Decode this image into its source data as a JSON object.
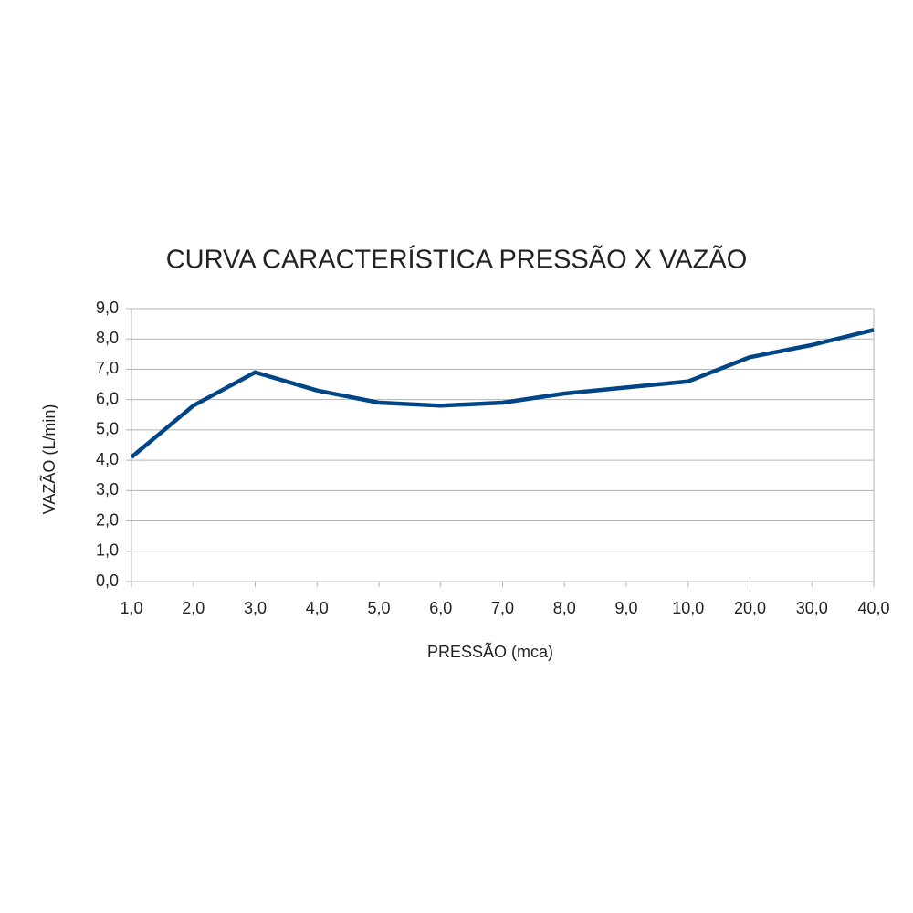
{
  "chart_data": {
    "type": "line",
    "title": "CURVA CARACTERÍSTICA PRESSÃO X VAZÃO",
    "x_label": "PRESSÃO (mca)",
    "y_label": "VAZÃO (L/min)",
    "categories": [
      "1,0",
      "2,0",
      "3,0",
      "4,0",
      "5,0",
      "6,0",
      "7,0",
      "8,0",
      "9,0",
      "10,0",
      "20,0",
      "30,0",
      "40,0"
    ],
    "series": [
      {
        "color": "#004586",
        "values": [
          4.1,
          5.8,
          6.9,
          6.3,
          5.9,
          5.8,
          5.9,
          6.2,
          6.4,
          6.6,
          7.4,
          7.8,
          8.3
        ]
      }
    ],
    "ylim": [
      0,
      9
    ],
    "yticks": [
      {
        "value": 0,
        "label": "0,0"
      },
      {
        "value": 1,
        "label": "1,0"
      },
      {
        "value": 2,
        "label": "2,0"
      },
      {
        "value": 3,
        "label": "3,0"
      },
      {
        "value": 4,
        "label": "4,0"
      },
      {
        "value": 5,
        "label": "5,0"
      },
      {
        "value": 6,
        "label": "6,0"
      },
      {
        "value": 7,
        "label": "7,0"
      },
      {
        "value": 8,
        "label": "8,0"
      },
      {
        "value": 9,
        "label": "9,0"
      }
    ],
    "grid": true
  }
}
